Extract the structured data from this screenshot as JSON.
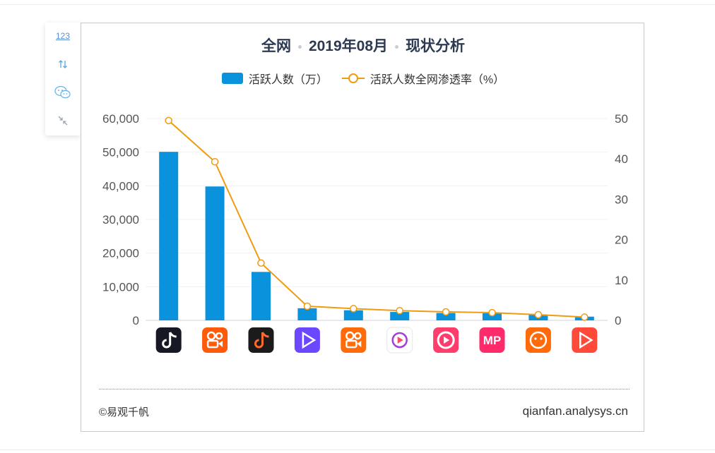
{
  "title": {
    "part1": "全网",
    "part2": "2019年08月",
    "part3": "现状分析"
  },
  "toolbar": {
    "label_button": "123"
  },
  "footer": {
    "copyright": "©易观千帆",
    "site": "qianfan.analysys.cn"
  },
  "colors": {
    "bar": "#0a92dc",
    "line": "#f19b10",
    "title": "#2d3a52"
  },
  "chart_data": {
    "type": "bar",
    "categories": [
      "抖音短视频",
      "快手",
      "抖音火山版",
      "西瓜视频",
      "快手极速版",
      "好看视频",
      "微视",
      "美拍",
      "全民小视频",
      "火山极速版"
    ],
    "category_icons": [
      "douyin-icon",
      "kuaishou-icon",
      "huoshan-icon",
      "xigua-icon",
      "kuaishou-lite-icon",
      "haokan-icon",
      "weishi-icon",
      "meipai-icon",
      "quanmin-icon",
      "huoshan-lite-icon"
    ],
    "series": [
      {
        "name": "活跃人数（万）",
        "type": "bar",
        "axis": "left",
        "values": [
          50100,
          39800,
          14400,
          3600,
          3000,
          2500,
          2200,
          2100,
          1700,
          1100
        ]
      },
      {
        "name": "活跃人数全网渗透率（%）",
        "type": "line",
        "axis": "right",
        "values": [
          49.5,
          39.3,
          14.2,
          3.5,
          2.9,
          2.4,
          2.1,
          1.9,
          1.4,
          0.8
        ]
      }
    ],
    "y_left": {
      "min": 0,
      "max": 60000,
      "ticks": [
        "0",
        "10,000",
        "20,000",
        "30,000",
        "40,000",
        "50,000",
        "60,000"
      ]
    },
    "y_right": {
      "min": 0,
      "max": 50,
      "ticks": [
        "0",
        "10",
        "20",
        "30",
        "40",
        "50"
      ]
    },
    "grid": true,
    "legend_position": "top-center"
  }
}
